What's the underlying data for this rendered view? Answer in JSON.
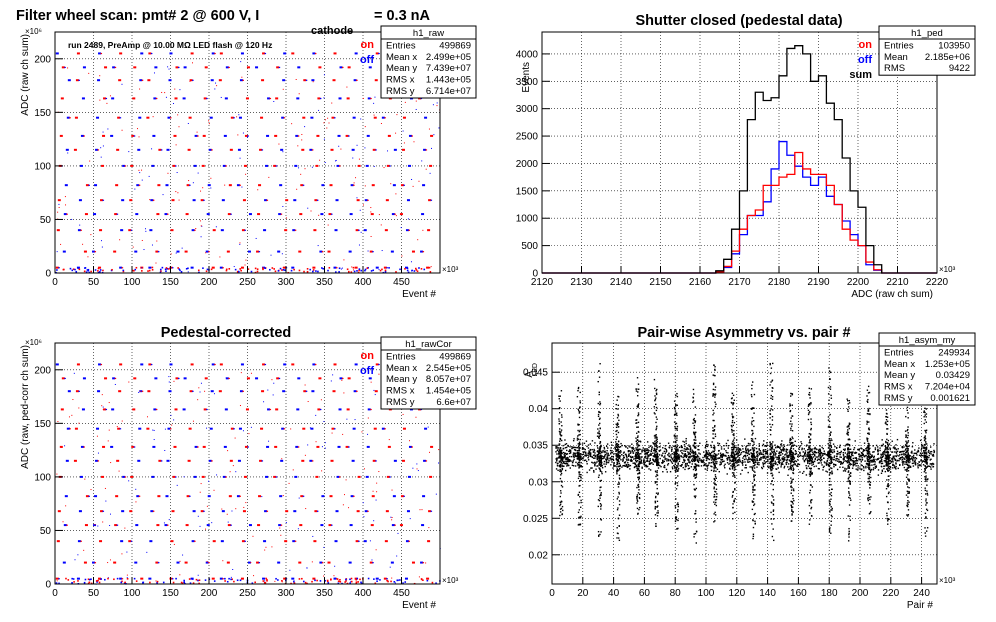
{
  "chart_data": [
    {
      "panel": "top-left",
      "type": "scatter",
      "title_main": "Filter wheel scan: pmt#   2 @   600 V, I",
      "title_sub": "cathode",
      "title_tail": " = 0.3 nA",
      "annotation": "run 2489, PreAmp @ 10.00 MΩ LED flash @  120 Hz",
      "xlabel": "Event #",
      "ylabel": "ADC (raw ch sum)",
      "x_exponent": "×10³",
      "y_exponent": "×10⁶",
      "xlim": [
        0,
        500
      ],
      "ylim": [
        0,
        225
      ],
      "xticks": [
        0,
        50,
        100,
        150,
        200,
        250,
        300,
        350,
        400,
        450
      ],
      "yticks": [
        0,
        50,
        100,
        150,
        200
      ],
      "legend": [
        {
          "label": "on",
          "color": "#ff0000"
        },
        {
          "label": "off",
          "color": "#0000ff"
        }
      ],
      "stats": {
        "name": "h1_raw",
        "rows": [
          [
            "Entries",
            "499869"
          ],
          [
            "Mean x",
            "2.499e+05"
          ],
          [
            "Mean y",
            "7.439e+07"
          ],
          [
            "RMS x",
            "1.443e+05"
          ],
          [
            "RMS y",
            "6.714e+07"
          ]
        ]
      },
      "level_values": [
        5,
        20,
        40,
        55,
        68,
        82,
        100,
        115,
        128,
        145,
        163,
        180,
        192,
        205
      ],
      "period": 24
    },
    {
      "panel": "top-right",
      "type": "line",
      "title": "Shutter closed (pedestal data)",
      "xlabel": "ADC (raw ch sum)",
      "ylabel": "Events",
      "x_exponent": "×10³",
      "xlim": [
        2120,
        2220
      ],
      "ylim": [
        0,
        4400
      ],
      "xticks": [
        2120,
        2130,
        2140,
        2150,
        2160,
        2170,
        2180,
        2190,
        2200,
        2210,
        2220
      ],
      "yticks": [
        0,
        500,
        1000,
        1500,
        2000,
        2500,
        3000,
        3500,
        4000
      ],
      "legend": [
        {
          "label": "on",
          "color": "#ff0000"
        },
        {
          "label": "off",
          "color": "#0000ff"
        },
        {
          "label": "sum",
          "color": "#000000"
        }
      ],
      "stats": {
        "name": "h1_ped",
        "rows": [
          [
            "Entries",
            "103950"
          ],
          [
            "Mean",
            "2.185e+06"
          ],
          [
            "RMS",
            "9422"
          ]
        ]
      },
      "bin_edges_start": 2120,
      "bin_width": 2,
      "series": [
        {
          "name": "sum",
          "color": "#000000",
          "values": [
            0,
            0,
            0,
            0,
            0,
            0,
            0,
            0,
            0,
            0,
            0,
            0,
            0,
            0,
            0,
            0,
            0,
            0,
            0,
            0,
            0,
            0,
            40,
            250,
            800,
            1500,
            2800,
            3300,
            3150,
            3200,
            3600,
            4100,
            4150,
            4000,
            3500,
            3600,
            3100,
            2800,
            2100,
            1500,
            1200,
            500,
            150,
            0,
            0,
            0,
            0,
            0,
            0,
            0
          ]
        },
        {
          "name": "on",
          "color": "#ff0000",
          "values": [
            0,
            0,
            0,
            0,
            0,
            0,
            0,
            0,
            0,
            0,
            0,
            0,
            0,
            0,
            0,
            0,
            0,
            0,
            0,
            0,
            0,
            0,
            20,
            120,
            400,
            800,
            1050,
            1150,
            1600,
            1600,
            1750,
            1800,
            2200,
            1900,
            1800,
            1800,
            1600,
            1250,
            800,
            600,
            500,
            200,
            60,
            0,
            0,
            0,
            0,
            0,
            0,
            0
          ]
        },
        {
          "name": "off",
          "color": "#0000ff",
          "values": [
            0,
            0,
            0,
            0,
            0,
            0,
            0,
            0,
            0,
            0,
            0,
            0,
            0,
            0,
            0,
            0,
            0,
            0,
            0,
            0,
            0,
            0,
            20,
            100,
            350,
            700,
            1050,
            1050,
            1300,
            1900,
            2400,
            2150,
            1950,
            1750,
            1600,
            1750,
            1400,
            1250,
            950,
            700,
            500,
            150,
            50,
            0,
            0,
            0,
            0,
            0,
            0,
            0
          ]
        }
      ]
    },
    {
      "panel": "bottom-left",
      "type": "scatter",
      "title": "Pedestal-corrected",
      "xlabel": "Event #",
      "ylabel": "ADC (raw, ped-corr ch sum)",
      "x_exponent": "×10³",
      "y_exponent": "×10⁶",
      "xlim": [
        0,
        500
      ],
      "ylim": [
        0,
        225
      ],
      "xticks": [
        0,
        50,
        100,
        150,
        200,
        250,
        300,
        350,
        400,
        450
      ],
      "yticks": [
        0,
        50,
        100,
        150,
        200
      ],
      "legend": [
        {
          "label": "on",
          "color": "#ff0000"
        },
        {
          "label": "off",
          "color": "#0000ff"
        }
      ],
      "stats": {
        "name": "h1_rawCor",
        "rows": [
          [
            "Entries",
            "499869"
          ],
          [
            "Mean x",
            "2.545e+05"
          ],
          [
            "Mean y",
            "8.057e+07"
          ],
          [
            "RMS x",
            "1.454e+05"
          ],
          [
            "RMS y",
            "6.6e+07"
          ]
        ]
      },
      "level_values": [
        5,
        20,
        40,
        55,
        68,
        82,
        100,
        115,
        128,
        145,
        163,
        180,
        192,
        205
      ],
      "period": 24
    },
    {
      "panel": "bottom-right",
      "type": "scatter",
      "title": "Pair-wise Asymmetry vs. pair #",
      "xlabel": "Pair #",
      "ylabel": "A",
      "ylabel_sub": "LED",
      "x_exponent": "×10³",
      "xlim": [
        0,
        250
      ],
      "ylim": [
        0.016,
        0.049
      ],
      "xticks": [
        0,
        20,
        40,
        60,
        80,
        100,
        120,
        140,
        160,
        180,
        200,
        220,
        240
      ],
      "yticks": [
        0.02,
        0.025,
        0.03,
        0.035,
        0.04,
        0.045
      ],
      "band_center": 0.0335,
      "band_half_width": 0.0012,
      "spike_x": [
        5,
        17,
        30,
        42,
        55,
        67,
        80,
        92,
        105,
        117,
        130,
        142,
        155,
        167,
        180,
        192,
        205,
        217,
        230,
        242
      ],
      "stats": {
        "name": "h1_asym_my",
        "rows": [
          [
            "Entries",
            "249934"
          ],
          [
            "Mean x",
            "1.253e+05"
          ],
          [
            "Mean y",
            "0.03429"
          ],
          [
            "RMS x",
            "7.204e+04"
          ],
          [
            "RMS y",
            "0.001621"
          ]
        ]
      }
    }
  ]
}
